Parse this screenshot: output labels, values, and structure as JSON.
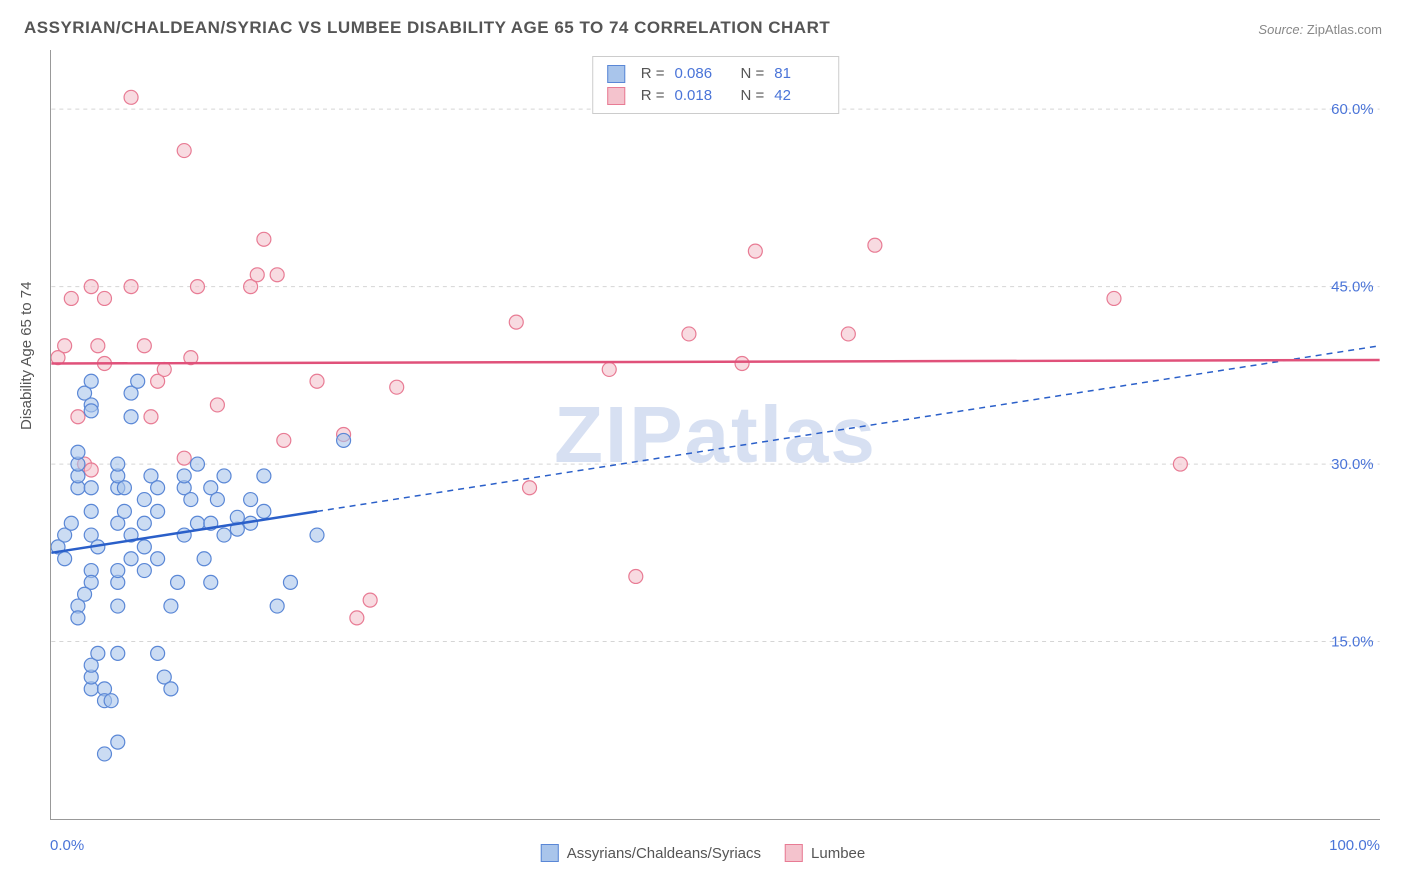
{
  "title": "ASSYRIAN/CHALDEAN/SYRIAC VS LUMBEE DISABILITY AGE 65 TO 74 CORRELATION CHART",
  "source_label": "Source:",
  "source_value": "ZipAtlas.com",
  "ylabel": "Disability Age 65 to 74",
  "watermark": "ZIPatlas",
  "series": {
    "a": {
      "name": "Assyrians/Chaldeans/Syriacs",
      "r": "0.086",
      "n": "81",
      "fill": "#a9c5eb",
      "stroke": "#5a87d6",
      "line_color": "#2a5fc9",
      "points": [
        [
          0.5,
          23
        ],
        [
          1,
          22
        ],
        [
          1,
          24
        ],
        [
          1.5,
          25
        ],
        [
          2,
          28
        ],
        [
          2,
          29
        ],
        [
          2,
          30
        ],
        [
          2,
          31
        ],
        [
          2.5,
          36
        ],
        [
          3,
          37
        ],
        [
          3,
          35
        ],
        [
          3,
          34.5
        ],
        [
          3,
          28
        ],
        [
          3,
          26
        ],
        [
          3,
          24
        ],
        [
          3.5,
          23
        ],
        [
          3,
          21
        ],
        [
          3,
          20
        ],
        [
          2.5,
          19
        ],
        [
          2,
          18
        ],
        [
          2,
          17
        ],
        [
          3,
          11
        ],
        [
          3,
          12
        ],
        [
          3,
          13
        ],
        [
          3.5,
          14
        ],
        [
          4,
          11
        ],
        [
          4,
          10
        ],
        [
          4.5,
          10
        ],
        [
          5,
          14
        ],
        [
          5,
          18
        ],
        [
          5,
          20
        ],
        [
          5,
          21
        ],
        [
          5,
          25
        ],
        [
          5,
          28
        ],
        [
          5,
          29
        ],
        [
          5,
          30
        ],
        [
          5.5,
          28
        ],
        [
          5.5,
          26
        ],
        [
          6,
          24
        ],
        [
          6,
          22
        ],
        [
          6,
          34
        ],
        [
          6,
          36
        ],
        [
          6.5,
          37
        ],
        [
          7,
          27
        ],
        [
          7,
          25
        ],
        [
          7,
          23
        ],
        [
          7,
          21
        ],
        [
          7.5,
          29
        ],
        [
          8,
          28
        ],
        [
          8,
          26
        ],
        [
          8,
          22
        ],
        [
          8,
          14
        ],
        [
          8.5,
          12
        ],
        [
          9,
          11
        ],
        [
          9,
          18
        ],
        [
          9.5,
          20
        ],
        [
          10,
          24
        ],
        [
          10,
          28
        ],
        [
          10,
          29
        ],
        [
          10.5,
          27
        ],
        [
          11,
          25
        ],
        [
          11,
          30
        ],
        [
          11.5,
          22
        ],
        [
          12,
          28
        ],
        [
          12,
          20
        ],
        [
          12,
          25
        ],
        [
          12.5,
          27
        ],
        [
          13,
          29
        ],
        [
          13,
          24
        ],
        [
          14,
          24.5
        ],
        [
          14,
          25.5
        ],
        [
          15,
          27
        ],
        [
          15,
          25
        ],
        [
          16,
          26
        ],
        [
          16,
          29
        ],
        [
          17,
          18
        ],
        [
          18,
          20
        ],
        [
          20,
          24
        ],
        [
          22,
          32
        ],
        [
          4,
          5.5
        ],
        [
          5,
          6.5
        ]
      ],
      "trend": {
        "x1": 0,
        "y1": 22.5,
        "x2": 20,
        "y2": 26
      },
      "trend_ext": {
        "x1": 20,
        "y1": 26,
        "x2": 100,
        "y2": 40
      }
    },
    "b": {
      "name": "Lumbee",
      "r": "0.018",
      "n": "42",
      "fill": "#f4c3cd",
      "stroke": "#e87b94",
      "line_color": "#e0517a",
      "points": [
        [
          0.5,
          39
        ],
        [
          1,
          40
        ],
        [
          1.5,
          44
        ],
        [
          2,
          34
        ],
        [
          2.5,
          30
        ],
        [
          3,
          29.5
        ],
        [
          3,
          45
        ],
        [
          3.5,
          40
        ],
        [
          4,
          38.5
        ],
        [
          4,
          44
        ],
        [
          6,
          61
        ],
        [
          6,
          45
        ],
        [
          7,
          40
        ],
        [
          7.5,
          34
        ],
        [
          8,
          37
        ],
        [
          8.5,
          38
        ],
        [
          10,
          56.5
        ],
        [
          10,
          30.5
        ],
        [
          10.5,
          39
        ],
        [
          11,
          45
        ],
        [
          12.5,
          35
        ],
        [
          15,
          45
        ],
        [
          15.5,
          46
        ],
        [
          16,
          49
        ],
        [
          17,
          46
        ],
        [
          17.5,
          32
        ],
        [
          20,
          37
        ],
        [
          22,
          32.5
        ],
        [
          23,
          17
        ],
        [
          24,
          18.5
        ],
        [
          26,
          36.5
        ],
        [
          35,
          42
        ],
        [
          36,
          28
        ],
        [
          42,
          38
        ],
        [
          44,
          20.5
        ],
        [
          48,
          41
        ],
        [
          52,
          38.5
        ],
        [
          53,
          48
        ],
        [
          60,
          41
        ],
        [
          62,
          48.5
        ],
        [
          80,
          44
        ],
        [
          85,
          30
        ]
      ],
      "trend": {
        "x1": 0,
        "y1": 38.5,
        "x2": 100,
        "y2": 38.8
      }
    }
  },
  "axes": {
    "xmin": 0,
    "xmax": 100,
    "ymin": 0,
    "ymax": 65,
    "xticks": [
      0,
      12,
      24,
      36,
      48,
      60,
      72,
      84,
      100
    ],
    "xtick_labels": {
      "0": "0.0%",
      "100": "100.0%"
    },
    "yticks": [
      15,
      30,
      45,
      60
    ],
    "ytick_labels": {
      "15": "15.0%",
      "30": "30.0%",
      "45": "45.0%",
      "60": "60.0%"
    }
  },
  "marker_radius": 7,
  "marker_opacity": 0.6,
  "legend_labels": {
    "r": "R =",
    "n": "N ="
  }
}
